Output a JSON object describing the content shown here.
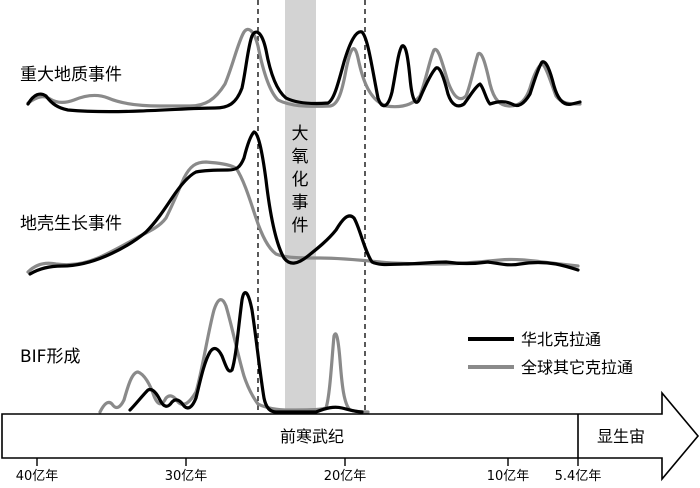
{
  "labels": {
    "major_events": "重大地质事件",
    "crust_growth": "地壳生长事件",
    "bif": "BIF形成",
    "goe_chars": [
      "大",
      "氧",
      "化",
      "事",
      "件"
    ]
  },
  "eons": {
    "precambrian": "前寒武纪",
    "phanerozoic": "显生宙"
  },
  "ticks": [
    "40亿年",
    "30亿年",
    "20亿年",
    "10亿年",
    "5.4亿年"
  ],
  "legend": {
    "north_china": "华北克拉通",
    "global": "全球其它克拉通"
  },
  "colors": {
    "north_china": "#000000",
    "global": "#8a8a8a",
    "goe_band": "#d3d3d3"
  }
}
